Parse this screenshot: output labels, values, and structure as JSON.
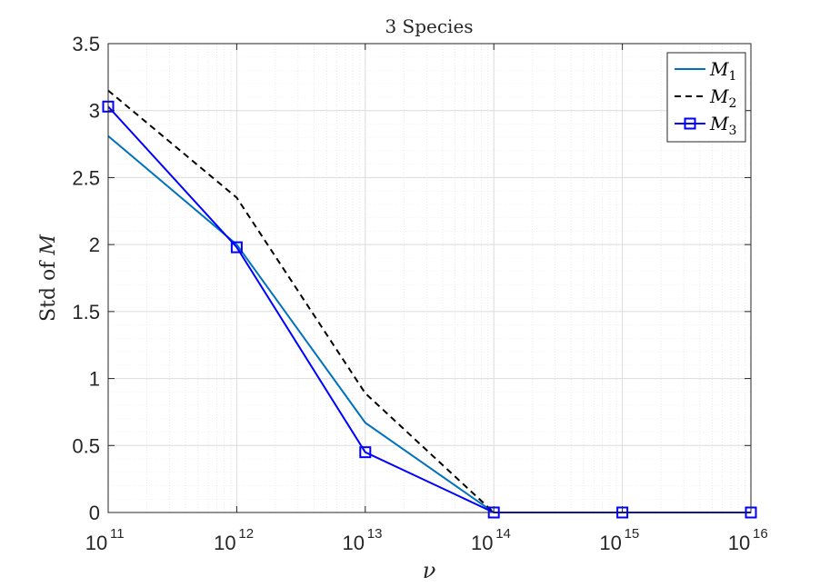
{
  "chart_data": {
    "type": "line",
    "title": "3 Species",
    "xlabel": "ν",
    "ylabel_prefix": "Std of ",
    "ylabel_var": "M",
    "x_scale": "log",
    "x_exponents": [
      11,
      12,
      13,
      14,
      15,
      16
    ],
    "x_tick_labels": [
      "10",
      "10",
      "10",
      "10",
      "10",
      "10"
    ],
    "x_tick_exp_labels": [
      "11",
      "12",
      "13",
      "14",
      "15",
      "16"
    ],
    "ylim": [
      0,
      3.5
    ],
    "y_ticks": [
      0,
      0.5,
      1,
      1.5,
      2,
      2.5,
      3,
      3.5
    ],
    "y_tick_labels": [
      "0",
      "0.5",
      "1",
      "1.5",
      "2",
      "2.5",
      "3",
      "3.5"
    ],
    "grid": true,
    "legend_position": "top-right",
    "series": [
      {
        "name": "M1",
        "label_base": "M",
        "label_sub": "1",
        "color": "#0072BD",
        "style": "solid",
        "marker": "none",
        "values": [
          2.81,
          2.0,
          0.67,
          0.0,
          0.0,
          0.0
        ]
      },
      {
        "name": "M2",
        "label_base": "M",
        "label_sub": "2",
        "color": "#000000",
        "style": "dashed",
        "marker": "none",
        "values": [
          3.15,
          2.35,
          0.89,
          0.0,
          0.0,
          0.0
        ]
      },
      {
        "name": "M3",
        "label_base": "M",
        "label_sub": "3",
        "color": "#0000FF",
        "style": "solid",
        "marker": "square",
        "values": [
          3.03,
          1.98,
          0.45,
          0.0,
          0.0,
          0.0
        ]
      }
    ]
  }
}
